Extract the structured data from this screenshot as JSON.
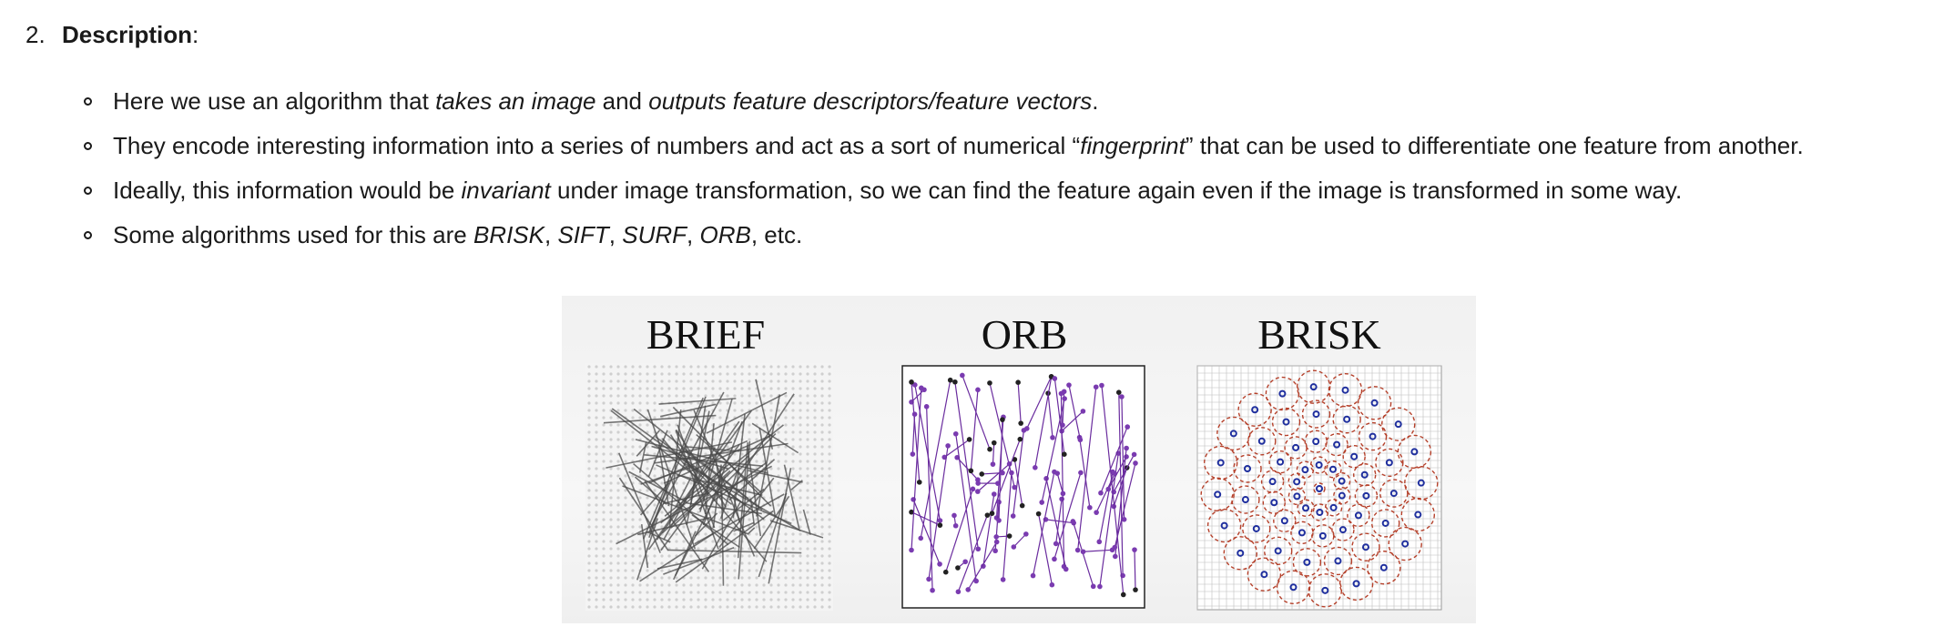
{
  "item": {
    "number": "2.",
    "title": "Description",
    "title_suffix": ":"
  },
  "bullets": [
    {
      "p1": "Here we use an algorithm that ",
      "em1": "takes an image",
      "p2": " and ",
      "em2": "outputs feature descriptors/feature vectors",
      "p3": "."
    },
    {
      "p1": "They encode interesting information into a series of numbers and act as a sort of numerical “",
      "em1": "fingerprint",
      "p2": "” that can be used to differentiate one feature from another."
    },
    {
      "p1": "Ideally, this information would be ",
      "em1": "invariant",
      "p2": " under image transformation, so we can find the feature again even if the image is transformed in some way."
    },
    {
      "p1": "Some algorithms used for this are ",
      "em1": "BRISK",
      "s1": ", ",
      "em2": "SIFT",
      "s2": ", ",
      "em3": "SURF",
      "s3": ", ",
      "em4": "ORB",
      "s4": ", etc."
    }
  ],
  "figure": {
    "panels": [
      {
        "title": "BRIEF"
      },
      {
        "title": "ORB"
      },
      {
        "title": "BRISK"
      }
    ],
    "colors": {
      "brief_lines": "#4a4a4a",
      "orb_lines": "#6a2c9e",
      "orb_points": "#7a3bb0",
      "brisk_circles": "#b5402a",
      "brisk_points": "#1f2f9e",
      "grid": "#bdbdbd"
    }
  }
}
